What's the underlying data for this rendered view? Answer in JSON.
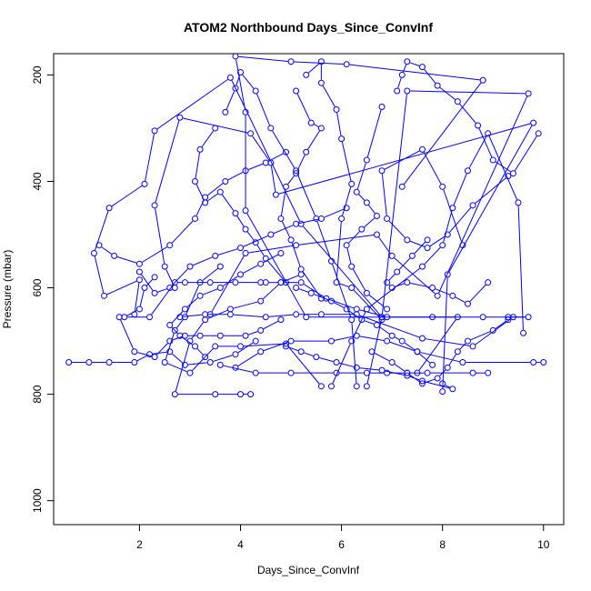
{
  "chart_data": {
    "type": "line",
    "title": "ATOM2 Northbound Days_Since_ConvInf",
    "xlabel": "Days_Since_ConvInf",
    "ylabel": "Pressure (mbar)",
    "xlim": [
      0.3,
      10.4
    ],
    "ylim": [
      1045,
      160
    ],
    "y_reversed": true,
    "xticks": [
      2,
      4,
      6,
      8,
      10
    ],
    "yticks": [
      200,
      400,
      600,
      800,
      1000
    ],
    "line_color": "#0000ff",
    "marker": "open-circle",
    "grid": false,
    "series": [
      {
        "points": [
          [
            6.8,
            655
          ],
          [
            5.2,
            480
          ],
          [
            3.8,
            205
          ],
          [
            2.3,
            305
          ],
          [
            2.1,
            405
          ],
          [
            1.4,
            450
          ],
          [
            1.1,
            535
          ],
          [
            1.3,
            615
          ],
          [
            2.0,
            585
          ],
          [
            1.9,
            650
          ]
        ]
      },
      {
        "points": [
          [
            7.5,
            760
          ],
          [
            8.3,
            655
          ],
          [
            5.3,
            655
          ],
          [
            4.1,
            455
          ],
          [
            4.1,
            270
          ],
          [
            3.9,
            165
          ],
          [
            5.0,
            175
          ],
          [
            6.1,
            180
          ],
          [
            8.8,
            210
          ],
          [
            7.2,
            410
          ]
        ]
      },
      {
        "points": [
          [
            8.0,
            795
          ],
          [
            8.1,
            575
          ],
          [
            9.8,
            290
          ],
          [
            4.7,
            425
          ],
          [
            4.6,
            365
          ],
          [
            4.2,
            310
          ],
          [
            2.8,
            280
          ],
          [
            2.3,
            445
          ],
          [
            2.5,
            560
          ],
          [
            2.7,
            600
          ]
        ]
      },
      {
        "points": [
          [
            6.5,
            785
          ],
          [
            6.8,
            655
          ],
          [
            7.3,
            230
          ],
          [
            9.7,
            235
          ],
          [
            7.9,
            615
          ],
          [
            7.0,
            540
          ],
          [
            6.7,
            500
          ],
          [
            5.1,
            520
          ],
          [
            4.1,
            535
          ],
          [
            3.4,
            650
          ]
        ]
      },
      {
        "points": [
          [
            5.8,
            785
          ],
          [
            6.2,
            700
          ],
          [
            6.5,
            640
          ],
          [
            7.6,
            560
          ],
          [
            8.0,
            520
          ],
          [
            8.2,
            450
          ],
          [
            8.5,
            380
          ],
          [
            8.9,
            310
          ],
          [
            9.5,
            440
          ],
          [
            9.6,
            685
          ]
        ]
      },
      {
        "points": [
          [
            6.3,
            785
          ],
          [
            6.2,
            660
          ],
          [
            5.8,
            550
          ],
          [
            5.5,
            470
          ],
          [
            5.1,
            380
          ],
          [
            4.6,
            300
          ],
          [
            4.3,
            230
          ],
          [
            4.0,
            195
          ],
          [
            3.9,
            225
          ],
          [
            3.7,
            270
          ]
        ]
      },
      {
        "points": [
          [
            5.6,
            785
          ],
          [
            4.9,
            705
          ],
          [
            4.0,
            710
          ],
          [
            3.5,
            710
          ],
          [
            3.0,
            760
          ],
          [
            2.5,
            740
          ],
          [
            2.7,
            680
          ],
          [
            2.9,
            655
          ],
          [
            3.2,
            590
          ],
          [
            3.6,
            560
          ]
        ]
      },
      {
        "points": [
          [
            0.6,
            740
          ],
          [
            1.0,
            740
          ],
          [
            1.4,
            740
          ],
          [
            1.9,
            740
          ],
          [
            2.2,
            725
          ],
          [
            2.6,
            720
          ],
          [
            2.9,
            745
          ],
          [
            3.4,
            740
          ],
          [
            3.9,
            725
          ],
          [
            4.3,
            700
          ]
        ]
      },
      {
        "points": [
          [
            8.9,
            760
          ],
          [
            8.6,
            760
          ],
          [
            7.7,
            760
          ],
          [
            7.3,
            760
          ],
          [
            6.9,
            760
          ],
          [
            6.5,
            760
          ],
          [
            5.9,
            760
          ],
          [
            5.0,
            760
          ],
          [
            4.3,
            760
          ],
          [
            3.6,
            745
          ]
        ]
      },
      {
        "points": [
          [
            10.0,
            740
          ],
          [
            9.8,
            740
          ],
          [
            8.4,
            740
          ],
          [
            7.5,
            720
          ],
          [
            6.9,
            700
          ],
          [
            6.3,
            690
          ],
          [
            5.8,
            700
          ],
          [
            5.0,
            700
          ],
          [
            4.4,
            720
          ],
          [
            3.9,
            750
          ]
        ]
      },
      {
        "points": [
          [
            9.3,
            655
          ],
          [
            9.7,
            655
          ],
          [
            8.8,
            655
          ],
          [
            7.8,
            655
          ],
          [
            6.9,
            655
          ],
          [
            6.3,
            640
          ],
          [
            5.7,
            620
          ],
          [
            5.2,
            590
          ],
          [
            4.8,
            590
          ],
          [
            4.5,
            590
          ]
        ]
      },
      {
        "points": [
          [
            9.4,
            655
          ],
          [
            8.6,
            710
          ],
          [
            7.6,
            695
          ],
          [
            6.3,
            650
          ],
          [
            5.6,
            650
          ],
          [
            5.1,
            650
          ],
          [
            4.5,
            655
          ],
          [
            3.8,
            650
          ],
          [
            3.3,
            650
          ],
          [
            2.8,
            655
          ]
        ]
      },
      {
        "points": [
          [
            9.3,
            390
          ],
          [
            8.6,
            445
          ],
          [
            8.1,
            500
          ],
          [
            7.7,
            525
          ],
          [
            7.3,
            510
          ],
          [
            6.9,
            470
          ],
          [
            6.8,
            380
          ],
          [
            7.6,
            340
          ],
          [
            8.0,
            410
          ],
          [
            8.4,
            520
          ]
        ]
      },
      {
        "points": [
          [
            7.1,
            230
          ],
          [
            7.2,
            200
          ],
          [
            7.3,
            175
          ],
          [
            7.6,
            185
          ],
          [
            7.9,
            220
          ],
          [
            8.3,
            250
          ],
          [
            8.7,
            295
          ],
          [
            9.0,
            360
          ],
          [
            9.4,
            385
          ],
          [
            9.9,
            310
          ]
        ]
      },
      {
        "points": [
          [
            4.2,
            800
          ],
          [
            4.0,
            800
          ],
          [
            3.5,
            800
          ],
          [
            2.7,
            800
          ],
          [
            3.0,
            700
          ],
          [
            3.3,
            660
          ],
          [
            3.8,
            640
          ],
          [
            4.4,
            625
          ],
          [
            4.8,
            590
          ],
          [
            5.2,
            575
          ]
        ]
      },
      {
        "points": [
          [
            4.4,
            590
          ],
          [
            3.9,
            590
          ],
          [
            3.4,
            590
          ],
          [
            2.9,
            590
          ],
          [
            2.7,
            590
          ],
          [
            2.2,
            655
          ],
          [
            1.7,
            655
          ],
          [
            2.0,
            640
          ],
          [
            2.1,
            600
          ],
          [
            2.3,
            580
          ]
        ]
      },
      {
        "points": [
          [
            6.8,
            660
          ],
          [
            6.2,
            600
          ],
          [
            5.9,
            590
          ],
          [
            6.0,
            470
          ],
          [
            6.2,
            405
          ],
          [
            6.0,
            320
          ],
          [
            5.9,
            265
          ],
          [
            5.6,
            215
          ],
          [
            5.6,
            175
          ],
          [
            5.3,
            200
          ]
        ]
      },
      {
        "points": [
          [
            4.9,
            590
          ],
          [
            4.5,
            545
          ],
          [
            4.3,
            515
          ],
          [
            4.1,
            490
          ],
          [
            3.9,
            460
          ],
          [
            3.6,
            420
          ],
          [
            3.3,
            440
          ],
          [
            3.1,
            400
          ],
          [
            3.2,
            340
          ],
          [
            3.5,
            300
          ]
        ]
      },
      {
        "points": [
          [
            5.6,
            620
          ],
          [
            5.2,
            565
          ],
          [
            5.0,
            510
          ],
          [
            4.8,
            470
          ],
          [
            4.9,
            410
          ],
          [
            5.1,
            385
          ],
          [
            5.3,
            345
          ],
          [
            5.6,
            300
          ],
          [
            5.4,
            290
          ],
          [
            5.1,
            230
          ]
        ]
      },
      {
        "points": [
          [
            6.9,
            640
          ],
          [
            6.5,
            610
          ],
          [
            6.2,
            560
          ],
          [
            6.1,
            520
          ],
          [
            6.4,
            490
          ],
          [
            6.7,
            465
          ],
          [
            6.5,
            440
          ],
          [
            6.3,
            420
          ],
          [
            6.5,
            360
          ],
          [
            6.8,
            260
          ]
        ]
      },
      {
        "points": [
          [
            8.9,
            590
          ],
          [
            8.5,
            630
          ],
          [
            8.2,
            615
          ],
          [
            7.8,
            600
          ],
          [
            7.3,
            590
          ],
          [
            7.0,
            600
          ],
          [
            6.9,
            590
          ],
          [
            7.1,
            570
          ],
          [
            7.4,
            540
          ],
          [
            7.7,
            510
          ]
        ]
      },
      {
        "points": [
          [
            2.0,
            570
          ],
          [
            2.3,
            610
          ],
          [
            2.6,
            600
          ],
          [
            3.0,
            560
          ],
          [
            3.5,
            540
          ],
          [
            4.0,
            525
          ],
          [
            4.6,
            500
          ],
          [
            5.1,
            480
          ],
          [
            5.6,
            470
          ],
          [
            6.1,
            450
          ]
        ]
      },
      {
        "points": [
          [
            9.3,
            660
          ],
          [
            9.0,
            680
          ],
          [
            8.5,
            700
          ],
          [
            8.3,
            720
          ],
          [
            8.1,
            750
          ],
          [
            7.9,
            770
          ],
          [
            7.6,
            780
          ],
          [
            7.3,
            760
          ],
          [
            7.0,
            740
          ],
          [
            6.6,
            720
          ]
        ]
      },
      {
        "points": [
          [
            1.6,
            655
          ],
          [
            1.9,
            720
          ],
          [
            2.3,
            730
          ],
          [
            2.6,
            700
          ],
          [
            2.9,
            690
          ],
          [
            3.2,
            690
          ],
          [
            3.6,
            690
          ],
          [
            4.1,
            690
          ],
          [
            4.4,
            680
          ],
          [
            4.8,
            660
          ]
        ]
      },
      {
        "points": [
          [
            1.2,
            520
          ],
          [
            1.5,
            540
          ],
          [
            2.0,
            555
          ],
          [
            2.6,
            520
          ],
          [
            3.1,
            470
          ],
          [
            3.3,
            430
          ],
          [
            3.7,
            400
          ],
          [
            4.1,
            380
          ],
          [
            4.5,
            365
          ],
          [
            4.9,
            345
          ]
        ]
      },
      {
        "points": [
          [
            8.0,
            780
          ],
          [
            8.2,
            790
          ],
          [
            7.6,
            775
          ],
          [
            7.3,
            765
          ],
          [
            6.8,
            755
          ],
          [
            6.3,
            750
          ],
          [
            5.9,
            740
          ],
          [
            5.5,
            730
          ],
          [
            5.2,
            720
          ],
          [
            4.9,
            710
          ]
        ]
      },
      {
        "points": [
          [
            7.8,
            745
          ],
          [
            7.5,
            720
          ],
          [
            7.2,
            700
          ],
          [
            7.0,
            690
          ],
          [
            6.7,
            670
          ],
          [
            6.4,
            660
          ],
          [
            6.1,
            640
          ],
          [
            5.8,
            625
          ],
          [
            5.4,
            610
          ],
          [
            5.1,
            600
          ]
        ]
      },
      {
        "points": [
          [
            3.3,
            730
          ],
          [
            3.1,
            710
          ],
          [
            2.8,
            690
          ],
          [
            2.6,
            670
          ],
          [
            2.9,
            640
          ],
          [
            3.2,
            615
          ],
          [
            3.6,
            600
          ],
          [
            4.0,
            575
          ],
          [
            4.4,
            555
          ],
          [
            4.8,
            535
          ]
        ]
      }
    ]
  }
}
